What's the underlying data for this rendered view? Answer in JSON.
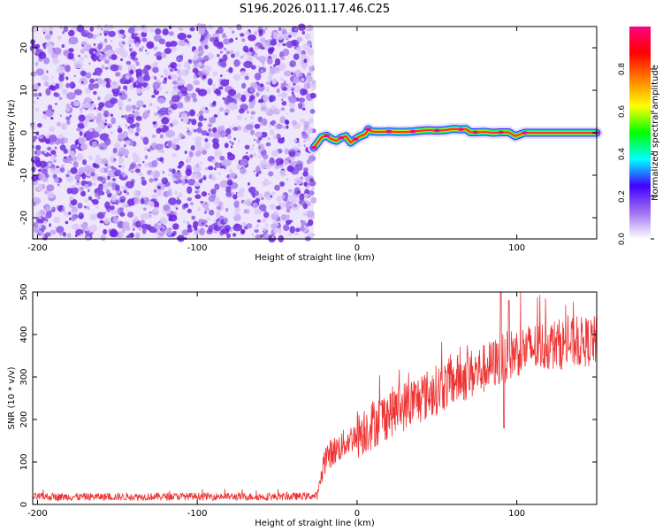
{
  "title": "S196.2026.011.17.46.C25",
  "chart_data": [
    {
      "type": "heatmap",
      "name": "spectrogram",
      "xlabel": "Height of straight line (km)",
      "ylabel": "Frequency (Hz)",
      "xlim": [
        -203,
        150
      ],
      "ylim": [
        -25,
        25
      ],
      "x_ticks": [
        -200,
        -100,
        0,
        100
      ],
      "y_ticks": [
        -20,
        -10,
        0,
        10,
        20
      ],
      "noise_region_x": [
        -203,
        -27
      ],
      "signal_track": {
        "x": [
          -27,
          -24,
          -22,
          -19,
          -16,
          -13,
          -10,
          -7,
          -4,
          -1,
          2,
          5,
          7,
          9,
          15,
          20,
          25,
          30,
          35,
          40,
          45,
          50,
          55,
          60,
          65,
          68,
          71,
          74,
          80,
          85,
          90,
          95,
          99,
          105,
          120,
          135,
          150
        ],
        "freq": [
          -3.5,
          -2.0,
          -1.0,
          -0.7,
          -1.5,
          -1.9,
          -1.2,
          -0.8,
          -2.3,
          -1.5,
          -0.8,
          -0.4,
          0.8,
          0.3,
          0.2,
          0.3,
          0.2,
          0.2,
          0.3,
          0.5,
          0.6,
          0.5,
          0.6,
          0.9,
          0.8,
          0.9,
          0.1,
          0.1,
          0.2,
          0.0,
          0.1,
          0.1,
          -0.8,
          0.0,
          0.0,
          0.0,
          0.0
        ]
      },
      "colorbar": {
        "label": "Normalized spectral amplitude",
        "ticks": [
          "0.0",
          "0.2",
          "0.4",
          "0.6",
          "0.8"
        ],
        "tick_values": [
          0.0,
          0.2,
          0.4,
          0.6,
          0.8
        ],
        "range": [
          0,
          1
        ],
        "colors": [
          "#ffffff",
          "#a070f0",
          "#4000ff",
          "#00ffff",
          "#00ff00",
          "#ffff00",
          "#ff8000",
          "#ff0000",
          "#ff0080"
        ]
      }
    },
    {
      "type": "line",
      "name": "snr",
      "xlabel": "Height of straight line (km)",
      "ylabel": "SNR (10 * v/v)",
      "xlim": [
        -203,
        150
      ],
      "ylim": [
        0,
        500
      ],
      "x_ticks": [
        -200,
        -100,
        0,
        100
      ],
      "y_ticks": [
        0,
        100,
        200,
        300,
        400,
        500
      ],
      "color": "#ee3333",
      "trend": {
        "x": [
          -203,
          -150,
          -100,
          -50,
          -25,
          -20,
          0,
          20,
          40,
          60,
          80,
          90,
          100,
          120,
          150
        ],
        "y": [
          18,
          18,
          19,
          18,
          20,
          110,
          165,
          215,
          250,
          290,
          320,
          340,
          360,
          375,
          385
        ]
      },
      "spikes": [
        {
          "x": 90,
          "y": 500
        },
        {
          "x": 95,
          "y": 480
        },
        {
          "x": 92,
          "y": 180
        }
      ]
    }
  ]
}
